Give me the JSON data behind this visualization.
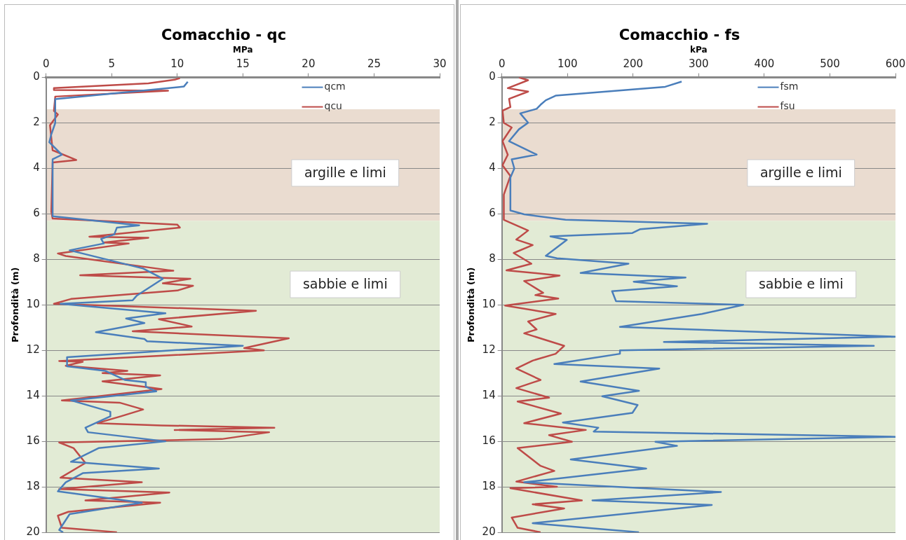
{
  "chart_data": [
    {
      "type": "line",
      "title": "Comacchio - qc",
      "xlabel": "MPa",
      "ylabel": "Profondità (m)",
      "xlim": [
        0,
        30
      ],
      "xticks": [
        0,
        5,
        10,
        15,
        20,
        25,
        30
      ],
      "ylim": [
        20,
        0
      ],
      "yticks": [
        0,
        2,
        4,
        6,
        8,
        10,
        12,
        14,
        16,
        18,
        20
      ],
      "grid": "y",
      "legend": "top right",
      "bands": [
        {
          "axis": "y",
          "from": 1.4,
          "to": 6.3,
          "label": "argille e limi",
          "color": "#eadcd0"
        },
        {
          "axis": "y",
          "from": 6.3,
          "to": 20,
          "label": "sabbie e limi",
          "color": "#e2ebd5"
        }
      ],
      "series": [
        {
          "name": "qcm",
          "color": "#4a7ebb",
          "x": [
            10.8,
            10.5,
            0.7,
            0.7,
            0.4,
            0.25,
            1.2,
            0.5,
            0.5,
            7.1,
            5.4,
            5.2,
            4.2,
            4.4,
            1.8,
            7.4,
            8.9,
            6.9,
            6.6,
            1.1,
            9.1,
            6.1,
            7.5,
            3.8,
            7.5,
            7.7,
            15.0,
            1.6,
            1.6,
            4.5,
            6.0,
            7.6,
            7.6,
            8.4,
            1.9,
            4.9,
            4.9,
            3.0,
            3.2,
            9.1,
            4.0,
            1.9,
            8.6,
            2.8,
            1.5,
            0.9,
            7.3,
            1.8,
            1.0,
            1.3
          ],
          "values": [
            0.19,
            0.4,
            0.95,
            2.0,
            2.5,
            2.85,
            3.4,
            3.6,
            6.1,
            6.5,
            6.6,
            6.9,
            7.1,
            7.3,
            7.6,
            8.4,
            8.85,
            9.6,
            9.8,
            9.95,
            10.37,
            10.6,
            10.8,
            11.2,
            11.5,
            11.6,
            11.8,
            12.3,
            12.7,
            12.9,
            13.3,
            13.4,
            13.6,
            13.8,
            14.2,
            14.7,
            14.9,
            15.4,
            15.6,
            16.0,
            16.3,
            16.9,
            17.2,
            17.4,
            17.8,
            18.2,
            18.7,
            19.2,
            19.9,
            20.0
          ]
        },
        {
          "name": "qcu",
          "color": "#be4b48",
          "x": [
            10.2,
            9.8,
            7.8,
            0.6,
            0.6,
            9.3,
            0.7,
            0.6,
            0.9,
            0.3,
            0.5,
            2.3,
            0.5,
            0.4,
            0.5,
            10.0,
            10.2,
            3.3,
            7.8,
            4.4,
            6.3,
            0.9,
            1.5,
            9.3,
            9.7,
            2.6,
            11.0,
            8.9,
            11.2,
            10.0,
            1.9,
            0.6,
            16.0,
            8.6,
            11.1,
            6.6,
            18.5,
            15.1,
            16.6,
            1.0,
            2.8,
            1.5,
            6.2,
            4.3,
            8.7,
            4.3,
            8.8,
            1.2,
            5.6,
            7.4,
            5.7,
            3.9,
            8.8,
            17.4,
            9.8,
            17.0,
            13.4,
            1.0,
            2.1,
            3.0,
            1.1,
            7.3,
            1.0,
            9.4,
            3.0,
            8.7,
            1.7,
            0.9,
            1.2,
            5.4
          ],
          "values": [
            0.03,
            0.1,
            0.26,
            0.47,
            0.55,
            0.58,
            0.84,
            1.47,
            1.63,
            2.1,
            3.2,
            3.63,
            3.74,
            5.9,
            6.2,
            6.47,
            6.6,
            7.0,
            7.05,
            7.26,
            7.3,
            7.74,
            7.85,
            8.47,
            8.5,
            8.7,
            8.85,
            9.05,
            9.16,
            9.37,
            9.74,
            9.95,
            10.26,
            10.63,
            10.95,
            11.16,
            11.47,
            11.9,
            12.0,
            12.47,
            12.5,
            12.68,
            12.9,
            13.0,
            13.1,
            13.36,
            13.7,
            14.2,
            14.3,
            14.6,
            14.9,
            15.2,
            15.3,
            15.4,
            15.5,
            15.6,
            15.9,
            16.05,
            16.3,
            16.95,
            17.6,
            17.8,
            18.1,
            18.25,
            18.6,
            18.7,
            19.1,
            19.27,
            19.8,
            20.0
          ]
        }
      ]
    },
    {
      "type": "line",
      "title": "Comacchio - fs",
      "xlabel": "kPa",
      "ylabel": "Profondità (m)",
      "xlim": [
        0,
        600
      ],
      "xticks": [
        0,
        100,
        200,
        300,
        400,
        500,
        600
      ],
      "ylim": [
        20,
        0
      ],
      "yticks": [
        0,
        2,
        4,
        6,
        8,
        10,
        12,
        14,
        16,
        18,
        20
      ],
      "grid": "y",
      "legend": "top right",
      "bands": [
        {
          "axis": "y",
          "from": 1.4,
          "to": 6.3,
          "label": "argille e limi",
          "color": "#eadcd0"
        },
        {
          "axis": "y",
          "from": 6.3,
          "to": 20,
          "label": "sabbie e limi",
          "color": "#e2ebd5"
        }
      ],
      "series": [
        {
          "name": "fsm",
          "color": "#4a7ebb",
          "x": [
            274,
            249,
            82,
            67,
            59,
            53,
            28,
            40,
            26,
            11,
            53,
            15,
            19,
            13,
            13,
            34,
            97,
            313,
            211,
            199,
            74,
            99,
            67,
            84,
            193,
            120,
            280,
            201,
            267,
            168,
            174,
            368,
            305,
            180,
            600,
            247,
            567,
            180,
            180,
            80,
            240,
            120,
            209,
            153,
            207,
            199,
            93,
            147,
            140,
            600,
            234,
            267,
            105,
            220,
            34,
            334,
            138,
            320,
            47,
            209
          ],
          "values": [
            0.18,
            0.41,
            0.8,
            1.0,
            1.2,
            1.38,
            1.58,
            1.99,
            2.28,
            2.8,
            3.39,
            3.6,
            4.0,
            4.4,
            5.85,
            6.02,
            6.26,
            6.43,
            6.67,
            6.84,
            6.99,
            7.14,
            7.84,
            7.95,
            8.19,
            8.6,
            8.8,
            8.98,
            9.18,
            9.4,
            9.84,
            10.0,
            10.4,
            10.97,
            11.4,
            11.63,
            11.8,
            12.0,
            12.15,
            12.6,
            12.8,
            13.37,
            13.78,
            14.02,
            14.4,
            14.75,
            15.17,
            15.4,
            15.57,
            15.8,
            16.02,
            16.2,
            16.8,
            17.2,
            17.8,
            18.23,
            18.6,
            18.8,
            19.6,
            20.0
          ]
        },
        {
          "name": "fsu",
          "color": "#be4b48",
          "x": [
            26,
            40,
            9,
            40,
            11,
            13,
            1,
            3,
            15,
            1,
            9,
            1,
            13,
            3,
            3,
            26,
            40,
            22,
            47,
            18,
            45,
            7,
            88,
            34,
            63,
            51,
            86,
            5,
            82,
            40,
            53,
            34,
            95,
            82,
            47,
            22,
            59,
            22,
            72,
            24,
            90,
            34,
            128,
            72,
            107,
            24,
            59,
            80,
            22,
            84,
            13,
            122,
            47,
            95,
            15,
            24,
            59
          ],
          "values": [
            0,
            0.12,
            0.47,
            0.62,
            0.94,
            1.3,
            1.46,
            2.0,
            2.2,
            2.8,
            3.4,
            3.86,
            4.33,
            5.15,
            6.26,
            6.55,
            6.73,
            7.13,
            7.37,
            7.72,
            8.19,
            8.48,
            8.71,
            8.95,
            9.47,
            9.57,
            9.72,
            10.03,
            10.4,
            10.73,
            11.08,
            11.25,
            11.8,
            12.15,
            12.45,
            12.8,
            13.3,
            13.66,
            14.08,
            14.25,
            14.78,
            15.2,
            15.5,
            15.73,
            16.02,
            16.3,
            17.08,
            17.3,
            17.77,
            18.0,
            18.06,
            18.6,
            18.77,
            18.95,
            19.35,
            19.8,
            20.0
          ]
        }
      ]
    }
  ]
}
